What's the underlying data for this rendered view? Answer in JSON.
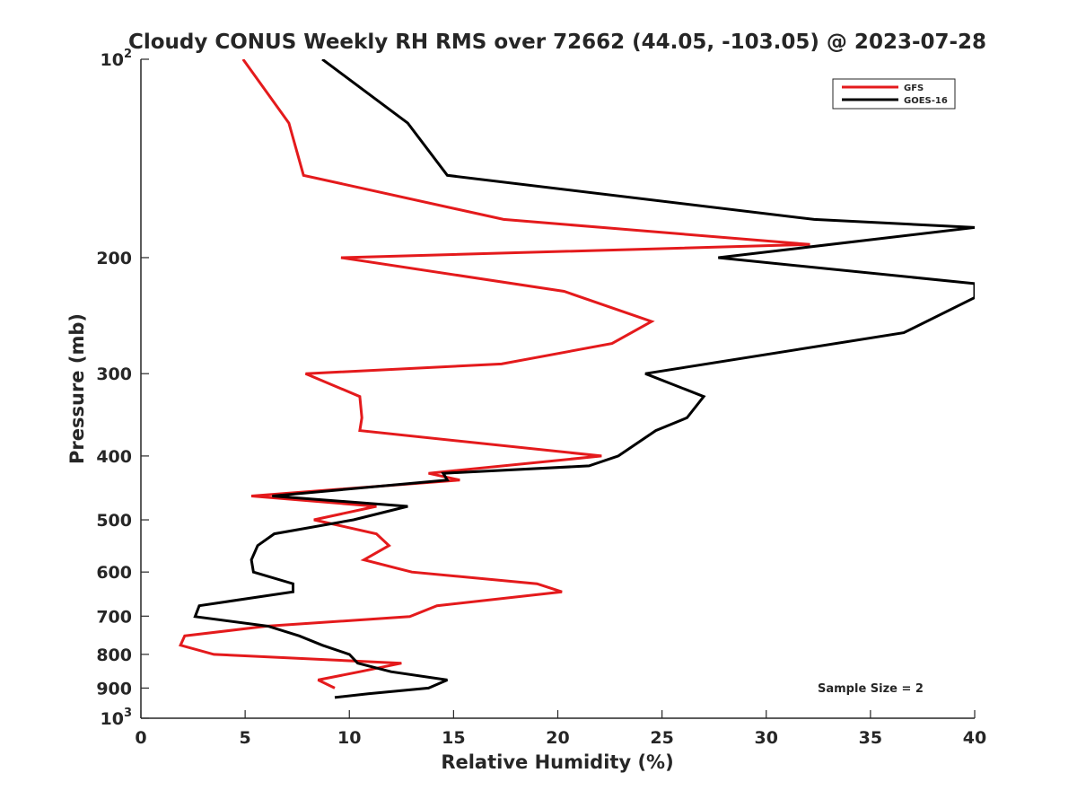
{
  "chart_data": {
    "type": "line",
    "title": "Cloudy CONUS Weekly RH RMS over 72662 (44.05, -103.05) @ 2023-07-28",
    "xlabel": "Relative Humidity (%)",
    "ylabel": "Pressure (mb)",
    "xlim": [
      0,
      40
    ],
    "ylim": [
      100,
      1000
    ],
    "y_scale": "log",
    "y_reversed": true,
    "grid": false,
    "legend_position": "top-right",
    "annotation": "Sample Size = 2",
    "x_ticks": [
      "0",
      "5",
      "10",
      "15",
      "20",
      "25",
      "30",
      "35",
      "40"
    ],
    "y_ticks": [
      {
        "value": 100,
        "label": "10",
        "exponent": "2"
      },
      {
        "value": 200,
        "label": "200"
      },
      {
        "value": 300,
        "label": "300"
      },
      {
        "value": 400,
        "label": "400"
      },
      {
        "value": 500,
        "label": "500"
      },
      {
        "value": 600,
        "label": "600"
      },
      {
        "value": 700,
        "label": "700"
      },
      {
        "value": 800,
        "label": "800"
      },
      {
        "value": 900,
        "label": "900"
      },
      {
        "value": 1000,
        "label": "10",
        "exponent": "3"
      }
    ],
    "series": [
      {
        "name": "GFS",
        "color": "#e41a1c",
        "points": [
          [
            4.9,
            100
          ],
          [
            7.1,
            125
          ],
          [
            7.8,
            150
          ],
          [
            17.4,
            175
          ],
          [
            32.1,
            191
          ],
          [
            9.6,
            200
          ],
          [
            20.3,
            225
          ],
          [
            24.5,
            250
          ],
          [
            22.6,
            270
          ],
          [
            17.3,
            290
          ],
          [
            7.9,
            300
          ],
          [
            10.5,
            325
          ],
          [
            10.6,
            350
          ],
          [
            10.5,
            366
          ],
          [
            22.1,
            400
          ],
          [
            13.8,
            425
          ],
          [
            15.3,
            435
          ],
          [
            5.3,
            460
          ],
          [
            11.3,
            477
          ],
          [
            8.3,
            500
          ],
          [
            11.3,
            525
          ],
          [
            11.9,
            547
          ],
          [
            10.7,
            575
          ],
          [
            13.0,
            600
          ],
          [
            19.0,
            625
          ],
          [
            20.2,
            643
          ],
          [
            14.2,
            675
          ],
          [
            12.9,
            701
          ],
          [
            6.0,
            725
          ],
          [
            2.1,
            750
          ],
          [
            1.9,
            775
          ],
          [
            3.5,
            800
          ],
          [
            12.5,
            825
          ],
          [
            10.5,
            850
          ],
          [
            8.5,
            875
          ],
          [
            9.3,
            900
          ]
        ]
      },
      {
        "name": "GOES-16",
        "color": "#000000",
        "points": [
          [
            8.7,
            100
          ],
          [
            12.8,
            125
          ],
          [
            14.7,
            150
          ],
          [
            32.3,
            175
          ],
          [
            40,
            180
          ],
          [
            27.7,
            200
          ],
          [
            40,
            219
          ],
          [
            40,
            230
          ],
          [
            36.6,
            260
          ],
          [
            24.2,
            300
          ],
          [
            27.0,
            325
          ],
          [
            26.2,
            350
          ],
          [
            24.7,
            366
          ],
          [
            22.9,
            400
          ],
          [
            21.5,
            414
          ],
          [
            14.5,
            425
          ],
          [
            14.7,
            435
          ],
          [
            6.3,
            460
          ],
          [
            12.8,
            477
          ],
          [
            10.2,
            500
          ],
          [
            6.4,
            525
          ],
          [
            5.6,
            547
          ],
          [
            5.3,
            575
          ],
          [
            5.4,
            600
          ],
          [
            7.3,
            625
          ],
          [
            7.3,
            643
          ],
          [
            2.8,
            675
          ],
          [
            2.6,
            701
          ],
          [
            6.1,
            725
          ],
          [
            7.6,
            750
          ],
          [
            8.7,
            775
          ],
          [
            10.0,
            800
          ],
          [
            10.4,
            825
          ],
          [
            12.0,
            850
          ],
          [
            14.7,
            875
          ],
          [
            13.8,
            900
          ],
          [
            10.9,
            918
          ],
          [
            9.3,
            930
          ]
        ]
      }
    ]
  }
}
